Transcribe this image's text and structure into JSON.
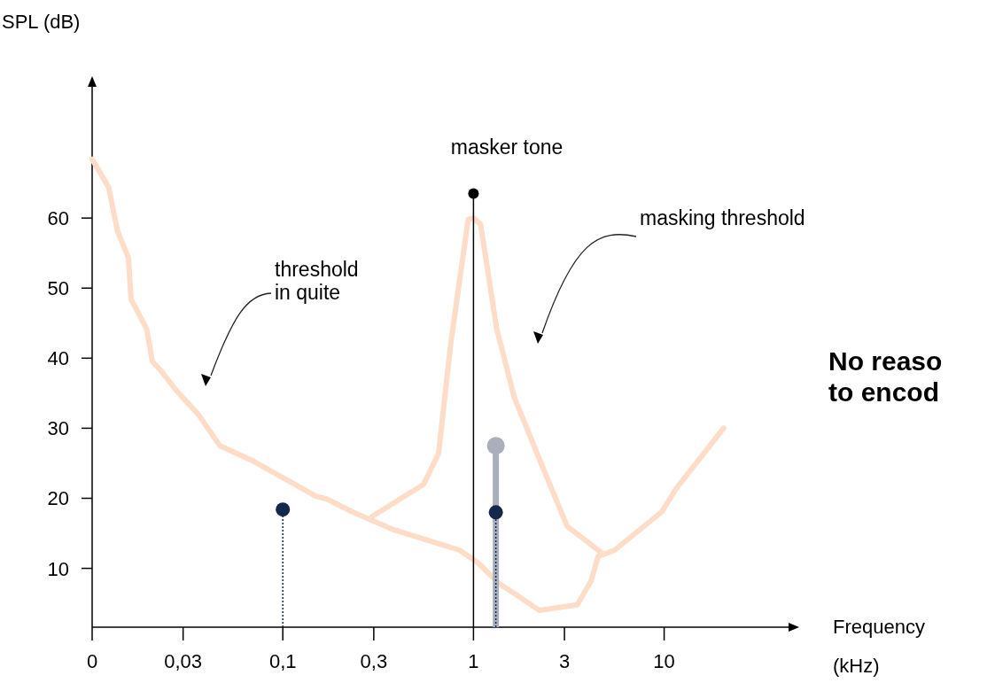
{
  "chart_data": {
    "type": "line",
    "ylabel": "SPL (dB)",
    "xlabel": "Frequency (kHz)",
    "log": "x",
    "xlim": [
      0.01,
      50
    ],
    "ylim": [
      1.6,
      80
    ],
    "xticks": [
      {
        "value": 0.01,
        "label": "0"
      },
      {
        "value": 0.03,
        "label": "0,03"
      },
      {
        "value": 0.1,
        "label": "0,1"
      },
      {
        "value": 0.3,
        "label": "0,3"
      },
      1,
      3,
      10
    ],
    "yticks": [
      10,
      20,
      30,
      40,
      50,
      60
    ],
    "series": [
      {
        "color": "#fddcc8",
        "x": [
          0.01,
          0.0122,
          0.0136,
          0.0155,
          0.016,
          0.0193,
          0.0207,
          0.0228,
          0.0276,
          0.036,
          0.0468,
          0.0701,
          0.149,
          0.17,
          0.23,
          0.374,
          0.845,
          1.055,
          1.366,
          1.641,
          2.217,
          3.5,
          4.14,
          4.5,
          5.5,
          9.75,
          11.5,
          20.5
        ],
        "values": [
          68.4,
          64.4,
          58.1,
          54.3,
          48.4,
          44.2,
          39.5,
          38.3,
          35.4,
          32,
          27.5,
          25.3,
          20.3,
          19.9,
          18.1,
          15.6,
          12.6,
          10.8,
          7.8,
          6.4,
          4,
          4.8,
          8.2,
          11.7,
          12.6,
          18.1,
          21.3,
          30
        ]
      },
      {
        "color": "#fddcc8",
        "x": [
          0.294,
          0.548,
          0.656,
          0.76,
          0.938,
          1,
          1.09,
          1.323,
          1.641,
          2.393,
          3.1,
          4.66
        ],
        "values": [
          17.4,
          22,
          26.4,
          42.1,
          59.8,
          60,
          59.1,
          44.2,
          34.3,
          23.4,
          16,
          12.3
        ]
      },
      {
        "type": "lollipop",
        "color": "#000000",
        "x": [
          1
        ],
        "values": [
          63.5
        ]
      },
      {
        "type": "lollipop",
        "color": "#a9b0bc",
        "x": [
          1.31
        ],
        "values": [
          27.5
        ]
      },
      {
        "type": "lollipop",
        "color": "#13284a",
        "line_style": "dotted",
        "x": [
          0.1,
          1.31
        ],
        "values": [
          18.4,
          18
        ]
      }
    ],
    "annotations": [
      "masker tone",
      "threshold\nin quite",
      "masking threshold",
      "No reaso\nto encod"
    ]
  }
}
